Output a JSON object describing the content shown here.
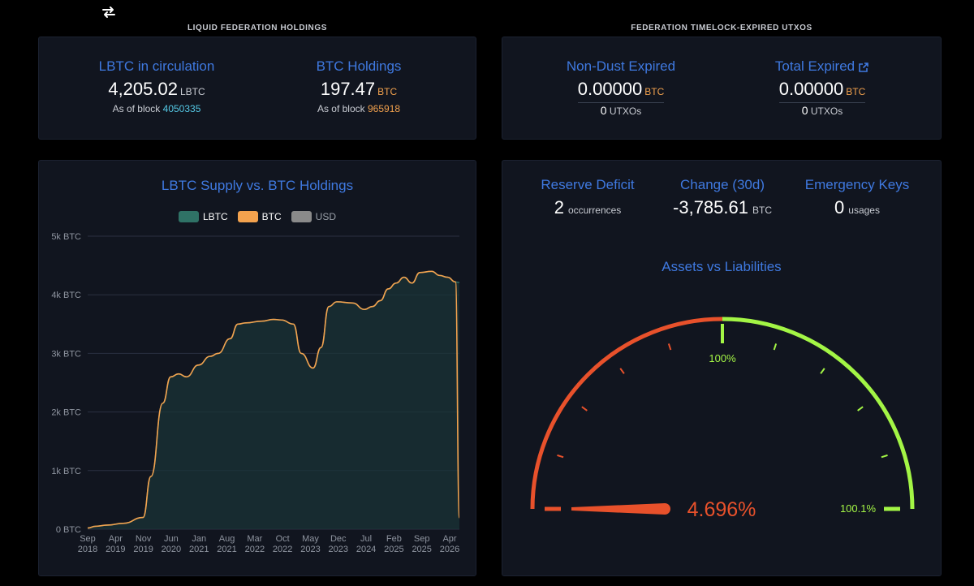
{
  "section_titles": {
    "holdings": "LIQUID FEDERATION HOLDINGS",
    "expired": "FEDERATION TIMELOCK-EXPIRED UTXOS"
  },
  "icons": {
    "swap": "swap-arrows-icon",
    "external": "external-link-icon"
  },
  "holdings": {
    "lbtc": {
      "label": "LBTC in circulation",
      "value": "4,205.02",
      "unit": "LBTC",
      "sub_prefix": "As of block",
      "block": "4050335"
    },
    "btc": {
      "label": "BTC Holdings",
      "value": "197.47",
      "unit": "BTC",
      "sub_prefix": "As of block",
      "block": "965918"
    }
  },
  "expired": {
    "non_dust": {
      "label": "Non-Dust Expired",
      "value": "0.00000",
      "unit": "BTC",
      "count": "0",
      "count_unit": "UTXOs"
    },
    "total": {
      "label": "Total Expired",
      "value": "0.00000",
      "unit": "BTC",
      "count": "0",
      "count_unit": "UTXOs"
    }
  },
  "metrics": {
    "reserve_deficit": {
      "label": "Reserve Deficit",
      "value": "2",
      "unit": "occurrences"
    },
    "change_30d": {
      "label": "Change (30d)",
      "value": "-3,785.61",
      "unit": "BTC"
    },
    "emergency_keys": {
      "label": "Emergency Keys",
      "value": "0",
      "unit": "usages"
    }
  },
  "gauge": {
    "title": "Assets vs Liabilities",
    "value_label": "4.696%",
    "mid_label": "100%",
    "max_label": "100.1%",
    "value": 4.696,
    "colors": {
      "low": "#e8512b",
      "high": "#a3f545",
      "needle": "#e8512b"
    }
  },
  "colors": {
    "accent": "#3f79e0",
    "lbtc": "#2f7266",
    "btc": "#f3a24e",
    "usd": "#8a8a8a"
  },
  "chart_data": {
    "type": "area",
    "title": "LBTC Supply vs. BTC Holdings",
    "legend": [
      "LBTC",
      "BTC",
      "USD"
    ],
    "legend_placement": "top",
    "y_ticks": [
      "0 BTC",
      "1k BTC",
      "2k BTC",
      "3k BTC",
      "4k BTC",
      "5k BTC"
    ],
    "x_ticks": [
      [
        "Sep",
        "2018"
      ],
      [
        "Apr",
        "2019"
      ],
      [
        "Nov",
        "2019"
      ],
      [
        "Jun",
        "2020"
      ],
      [
        "Jan",
        "2021"
      ],
      [
        "Aug",
        "2021"
      ],
      [
        "Mar",
        "2022"
      ],
      [
        "Oct",
        "2022"
      ],
      [
        "May",
        "2023"
      ],
      [
        "Dec",
        "2023"
      ],
      [
        "Jul",
        "2024"
      ],
      [
        "Feb",
        "2025"
      ],
      [
        "Sep",
        "2025"
      ],
      [
        "Apr",
        "2026"
      ]
    ],
    "ylim": [
      0,
      5000
    ],
    "xlim": [
      "2018-09",
      "2026-07"
    ],
    "grid": true,
    "series": [
      {
        "name": "LBTC",
        "x": [
          "2018-09",
          "2018-11",
          "2019-02",
          "2019-06",
          "2019-11",
          "2020-01",
          "2020-04",
          "2020-06",
          "2020-08",
          "2020-10",
          "2021-01",
          "2021-04",
          "2021-06",
          "2021-09",
          "2021-11",
          "2022-01",
          "2022-05",
          "2022-08",
          "2022-10",
          "2023-01",
          "2023-03",
          "2023-06",
          "2023-08",
          "2023-10",
          "2023-12",
          "2024-04",
          "2024-07",
          "2024-09",
          "2024-11",
          "2025-01",
          "2025-03",
          "2025-05",
          "2025-07",
          "2025-09",
          "2025-12",
          "2026-02",
          "2026-04",
          "2026-06",
          "2026-07"
        ],
        "values": [
          20,
          50,
          70,
          100,
          200,
          900,
          2150,
          2600,
          2650,
          2600,
          2800,
          2950,
          3000,
          3250,
          3500,
          3520,
          3550,
          3580,
          3570,
          3500,
          3000,
          2750,
          3100,
          3800,
          3880,
          3860,
          3750,
          3800,
          3900,
          4100,
          4200,
          4300,
          4200,
          4380,
          4400,
          4330,
          4300,
          4220,
          4210
        ]
      },
      {
        "name": "BTC",
        "x": [
          "2018-09",
          "2018-11",
          "2019-02",
          "2019-06",
          "2019-11",
          "2020-01",
          "2020-04",
          "2020-06",
          "2020-08",
          "2020-10",
          "2021-01",
          "2021-04",
          "2021-06",
          "2021-09",
          "2021-11",
          "2022-01",
          "2022-05",
          "2022-08",
          "2022-10",
          "2023-01",
          "2023-03",
          "2023-06",
          "2023-08",
          "2023-10",
          "2023-12",
          "2024-04",
          "2024-07",
          "2024-09",
          "2024-11",
          "2025-01",
          "2025-03",
          "2025-05",
          "2025-07",
          "2025-09",
          "2025-12",
          "2026-02",
          "2026-04",
          "2026-06",
          "2026-07"
        ],
        "values": [
          20,
          50,
          70,
          100,
          200,
          900,
          2150,
          2600,
          2650,
          2600,
          2800,
          2950,
          3000,
          3250,
          3500,
          3520,
          3550,
          3580,
          3570,
          3500,
          3000,
          2750,
          3100,
          3800,
          3880,
          3860,
          3750,
          3800,
          3900,
          4100,
          4200,
          4300,
          4200,
          4380,
          4400,
          4330,
          4300,
          4220,
          197
        ]
      }
    ]
  }
}
